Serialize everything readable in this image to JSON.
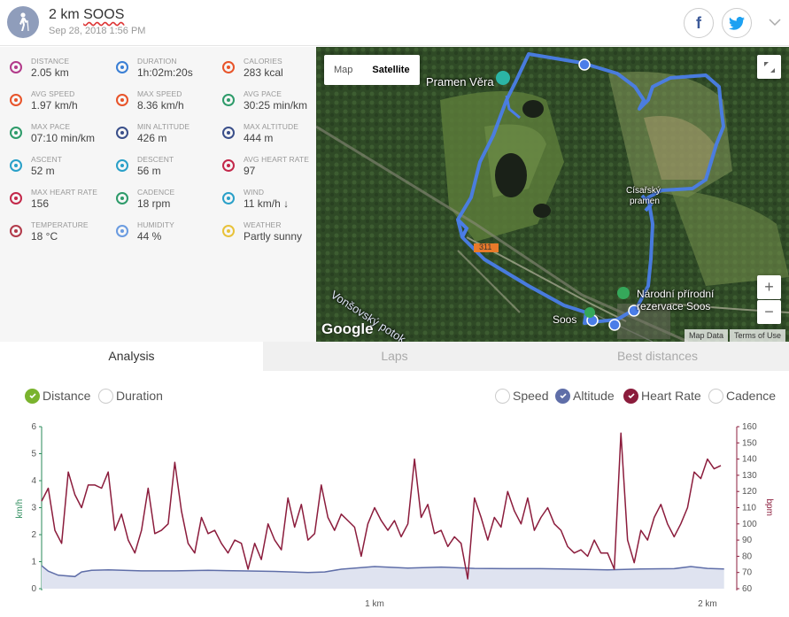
{
  "header": {
    "title_plain": "2 km ",
    "title_underlined": "SOOS",
    "date": "Sep 28, 2018 1:56 PM",
    "facebook": "f"
  },
  "stats": [
    {
      "label": "DISTANCE",
      "value": "2.05 km",
      "icon": "distance-icon",
      "color": "#b23a8a"
    },
    {
      "label": "DURATION",
      "value": "1h:02m:20s",
      "icon": "stopwatch-icon",
      "color": "#3a7fd5"
    },
    {
      "label": "CALORIES",
      "value": "283 kcal",
      "icon": "flame-icon",
      "color": "#e8542a"
    },
    {
      "label": "AVG SPEED",
      "value": "1.97 km/h",
      "icon": "speedometer-icon",
      "color": "#e8542a"
    },
    {
      "label": "MAX SPEED",
      "value": "8.36 km/h",
      "icon": "speedometer-icon",
      "color": "#e8542a"
    },
    {
      "label": "AVG PACE",
      "value": "30:25 min/km",
      "icon": "gauge-icon",
      "color": "#2e9b6a"
    },
    {
      "label": "MAX PACE",
      "value": "07:10 min/km",
      "icon": "gauge-icon",
      "color": "#2e9b6a"
    },
    {
      "label": "MIN ALTITUDE",
      "value": "426 m",
      "icon": "mountain-icon",
      "color": "#3a4f8a"
    },
    {
      "label": "MAX ALTITUDE",
      "value": "444 m",
      "icon": "mountain-icon",
      "color": "#3a4f8a"
    },
    {
      "label": "ASCENT",
      "value": "52 m",
      "icon": "ascent-icon",
      "color": "#2aa0c8"
    },
    {
      "label": "DESCENT",
      "value": "56 m",
      "icon": "descent-icon",
      "color": "#2aa0c8"
    },
    {
      "label": "AVG HEART RATE",
      "value": "97",
      "icon": "heartbeat-icon",
      "color": "#c3284a"
    },
    {
      "label": "MAX HEART RATE",
      "value": "156",
      "icon": "heartbeat-icon",
      "color": "#c3284a"
    },
    {
      "label": "CADENCE",
      "value": "18 rpm",
      "icon": "cadence-icon",
      "color": "#2e9b6a"
    },
    {
      "label": "WIND",
      "value": "11 km/h ↓",
      "icon": "wind-icon",
      "color": "#2aa0c8"
    },
    {
      "label": "TEMPERATURE",
      "value": "18 °C",
      "icon": "thermometer-icon",
      "color": "#b23a4a"
    },
    {
      "label": "HUMIDITY",
      "value": "44 %",
      "icon": "humidity-icon",
      "color": "#6a9be0"
    },
    {
      "label": "WEATHER",
      "value": "Partly sunny",
      "icon": "partly-sunny-icon",
      "color": "#e8c23a"
    }
  ],
  "map": {
    "toggle_map": "Map",
    "toggle_satellite": "Satellite",
    "zoom_in": "+",
    "zoom_out": "−",
    "labels": {
      "pramen_vera": "Pramen Věra",
      "cisarsky_1": "Císařský",
      "cisarsky_2": "pramen",
      "narodni_1": "Národní přírodní",
      "narodni_2": "rezervace Soos",
      "soos": "Soos",
      "road": "311",
      "potok": "Vonšovský potok"
    },
    "logo": "Google",
    "map_data": "Map Data",
    "terms": "Terms of Use"
  },
  "tabs": [
    "Analysis",
    "Laps",
    "Best distances"
  ],
  "toggles": {
    "distance": "Distance",
    "duration": "Duration",
    "speed": "Speed",
    "altitude": "Altitude",
    "heart_rate": "Heart Rate",
    "cadence": "Cadence"
  },
  "chart_data": {
    "type": "line",
    "xlabel": "",
    "x_ticks": [
      "1 km",
      "2 km"
    ],
    "x_tick_values": [
      1,
      2
    ],
    "xlim": [
      0,
      2.08
    ],
    "left_axis": {
      "label": "km/h",
      "ylim": [
        0,
        6
      ],
      "ticks": [
        0,
        1,
        2,
        3,
        4,
        5,
        6
      ]
    },
    "right_axis": {
      "label": "bpm",
      "ylim": [
        60,
        160
      ],
      "ticks": [
        60,
        70,
        80,
        90,
        100,
        110,
        120,
        130,
        140,
        150,
        160
      ]
    },
    "series": [
      {
        "name": "Altitude",
        "axis": "left",
        "type": "area",
        "color": "#5f6ea8",
        "x": [
          0,
          0.02,
          0.05,
          0.1,
          0.12,
          0.15,
          0.2,
          0.3,
          0.4,
          0.5,
          0.6,
          0.7,
          0.8,
          0.85,
          0.9,
          1.0,
          1.1,
          1.2,
          1.3,
          1.4,
          1.5,
          1.6,
          1.7,
          1.8,
          1.9,
          1.95,
          2.0,
          2.05
        ],
        "values": [
          0.85,
          0.65,
          0.5,
          0.45,
          0.62,
          0.68,
          0.7,
          0.66,
          0.66,
          0.68,
          0.66,
          0.64,
          0.6,
          0.62,
          0.72,
          0.82,
          0.76,
          0.8,
          0.75,
          0.74,
          0.74,
          0.72,
          0.7,
          0.73,
          0.74,
          0.82,
          0.75,
          0.73
        ]
      },
      {
        "name": "Heart Rate",
        "axis": "right",
        "type": "line",
        "color": "#8b1c3c",
        "x": [
          0,
          0.02,
          0.04,
          0.06,
          0.08,
          0.1,
          0.12,
          0.14,
          0.16,
          0.18,
          0.2,
          0.22,
          0.24,
          0.26,
          0.28,
          0.3,
          0.32,
          0.34,
          0.36,
          0.38,
          0.4,
          0.42,
          0.44,
          0.46,
          0.48,
          0.5,
          0.52,
          0.54,
          0.56,
          0.58,
          0.6,
          0.62,
          0.64,
          0.66,
          0.68,
          0.7,
          0.72,
          0.74,
          0.76,
          0.78,
          0.8,
          0.82,
          0.84,
          0.86,
          0.88,
          0.9,
          0.92,
          0.94,
          0.96,
          0.98,
          1.0,
          1.02,
          1.04,
          1.06,
          1.08,
          1.1,
          1.12,
          1.14,
          1.16,
          1.18,
          1.2,
          1.22,
          1.24,
          1.26,
          1.28,
          1.3,
          1.32,
          1.34,
          1.36,
          1.38,
          1.4,
          1.42,
          1.44,
          1.46,
          1.48,
          1.5,
          1.52,
          1.54,
          1.56,
          1.58,
          1.6,
          1.62,
          1.64,
          1.66,
          1.68,
          1.7,
          1.72,
          1.74,
          1.76,
          1.78,
          1.8,
          1.82,
          1.84,
          1.86,
          1.88,
          1.9,
          1.92,
          1.94,
          1.96,
          1.98,
          2.0,
          2.02,
          2.04
        ],
        "values": [
          114,
          122,
          96,
          88,
          132,
          118,
          110,
          124,
          124,
          122,
          132,
          96,
          106,
          90,
          82,
          96,
          122,
          94,
          96,
          100,
          138,
          108,
          88,
          82,
          104,
          94,
          96,
          88,
          82,
          90,
          88,
          72,
          88,
          78,
          100,
          90,
          84,
          116,
          98,
          112,
          90,
          94,
          124,
          104,
          96,
          106,
          102,
          98,
          80,
          100,
          110,
          102,
          96,
          102,
          92,
          100,
          140,
          104,
          112,
          94,
          96,
          86,
          92,
          88,
          66,
          116,
          104,
          90,
          104,
          98,
          120,
          108,
          100,
          116,
          96,
          104,
          110,
          100,
          96,
          86,
          82,
          84,
          80,
          90,
          82,
          82,
          72,
          156,
          90,
          76,
          96,
          90,
          104,
          112,
          100,
          92,
          100,
          110,
          132,
          128,
          140,
          134,
          136
        ]
      },
      {
        "name": "Speed",
        "enabled": false
      },
      {
        "name": "Cadence",
        "enabled": false
      }
    ]
  }
}
